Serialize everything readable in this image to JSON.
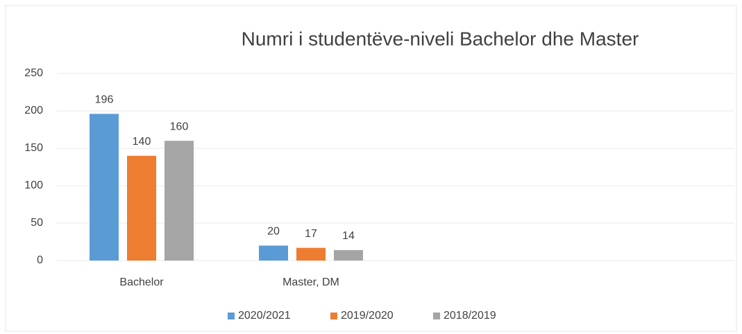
{
  "chart_data": {
    "type": "bar",
    "title": "Numri i studentëve-niveli Bachelor dhe Master",
    "categories": [
      "Bachelor",
      "Master, DM",
      null,
      null
    ],
    "series": [
      {
        "name": "2020/2021",
        "color": "#5b9bd5",
        "values": [
          196,
          20,
          null,
          null
        ]
      },
      {
        "name": "2019/2020",
        "color": "#ed7d31",
        "values": [
          140,
          17,
          null,
          null
        ]
      },
      {
        "name": "2018/2019",
        "color": "#a5a5a5",
        "values": [
          160,
          14,
          null,
          null
        ]
      }
    ],
    "ylim": [
      0,
      250
    ],
    "yticks": [
      0,
      50,
      100,
      150,
      200,
      250
    ],
    "grid": true,
    "legend": "bottom"
  }
}
